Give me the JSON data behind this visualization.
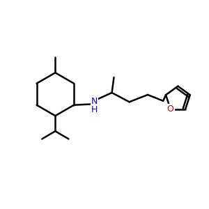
{
  "background_color": "#ffffff",
  "bond_color": "#000000",
  "N_color": "#0000cc",
  "O_color": "#cc0000",
  "bond_width": 1.8,
  "figsize": [
    3.0,
    3.0
  ],
  "dpi": 100,
  "xlim": [
    0,
    10
  ],
  "ylim": [
    1,
    9
  ]
}
